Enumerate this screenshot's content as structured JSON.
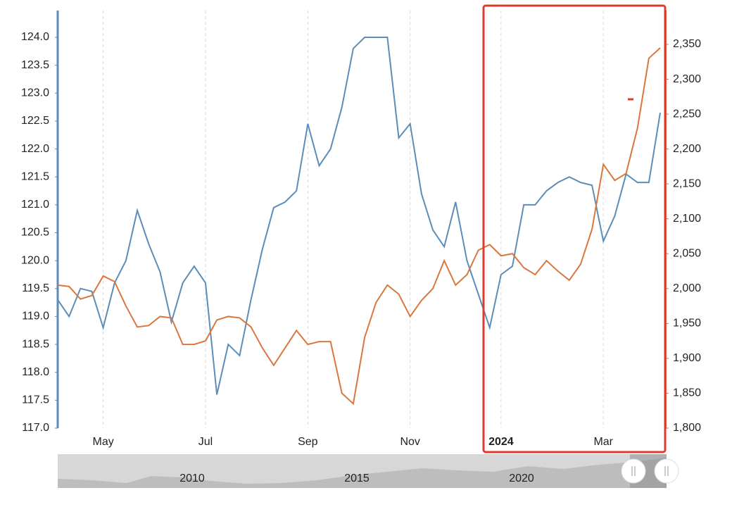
{
  "chart_data": {
    "type": "line",
    "categories": [
      null,
      null,
      null,
      null,
      "May",
      null,
      null,
      null,
      null,
      null,
      null,
      null,
      null,
      "Jul",
      null,
      null,
      null,
      null,
      null,
      null,
      null,
      null,
      "Sep",
      null,
      null,
      null,
      null,
      null,
      null,
      null,
      null,
      "Nov",
      null,
      null,
      null,
      null,
      null,
      null,
      null,
      "2024",
      null,
      null,
      null,
      null,
      null,
      null,
      null,
      null,
      "Mar",
      null,
      null,
      null,
      null,
      null
    ],
    "series": [
      {
        "color": "#5b8db8",
        "values": [
          119.3,
          119.0,
          119.5,
          119.45,
          118.8,
          119.6,
          120.0,
          120.9,
          120.3,
          119.8,
          118.9,
          119.6,
          119.9,
          119.6,
          117.6,
          118.5,
          118.3,
          119.3,
          120.2,
          120.95,
          121.05,
          121.25,
          122.45,
          121.7,
          122.0,
          122.75,
          123.8,
          124.0,
          124.0,
          124.0,
          122.2,
          122.45,
          121.2,
          120.55,
          120.25,
          121.05,
          120.0,
          119.4,
          118.8,
          119.75,
          119.9,
          121.0,
          121.0,
          121.25,
          121.4,
          121.5,
          121.4,
          121.35,
          120.35,
          120.8,
          121.55,
          121.4,
          121.4,
          122.65
        ]
      },
      {
        "color": "#d9773e",
        "axis": "y2",
        "values": [
          2005,
          2003,
          1985,
          1990,
          2018,
          2010,
          1975,
          1945,
          1947,
          1960,
          1958,
          1920,
          1920,
          1925,
          1955,
          1960,
          1958,
          1945,
          1915,
          1890,
          1915,
          1940,
          1920,
          1924,
          1924,
          1850,
          1835,
          1930,
          1980,
          2005,
          1992,
          1960,
          1983,
          2000,
          2040,
          2005,
          2020,
          2055,
          2063,
          2047,
          2050,
          2030,
          2020,
          2040,
          2025,
          2012,
          2035,
          2085,
          2178,
          2155,
          2165,
          2230,
          2330,
          2345
        ]
      }
    ],
    "ylim": [
      117.0,
      124.0
    ],
    "yticks": [
      {
        "value": 117.0,
        "label": "117.0"
      },
      {
        "value": 117.5,
        "label": "117.5"
      },
      {
        "value": 118.0,
        "label": "118.0"
      },
      {
        "value": 118.5,
        "label": "118.5"
      },
      {
        "value": 119.0,
        "label": "119.0"
      },
      {
        "value": 119.5,
        "label": "119.5"
      },
      {
        "value": 120.0,
        "label": "120.0"
      },
      {
        "value": 120.5,
        "label": "120.5"
      },
      {
        "value": 121.0,
        "label": "121.0"
      },
      {
        "value": 121.5,
        "label": "121.5"
      },
      {
        "value": 122.0,
        "label": "122.0"
      },
      {
        "value": 122.5,
        "label": "122.5"
      },
      {
        "value": 123.0,
        "label": "123.0"
      },
      {
        "value": 123.5,
        "label": "123.5"
      },
      {
        "value": 124.0,
        "label": "124.0"
      }
    ],
    "y2lim": [
      1800,
      2350
    ],
    "y2ticks": [
      {
        "value": 1800,
        "label": "1,800"
      },
      {
        "value": 1850,
        "label": "1,850"
      },
      {
        "value": 1900,
        "label": "1,900"
      },
      {
        "value": 1950,
        "label": "1,950"
      },
      {
        "value": 2000,
        "label": "2,000"
      },
      {
        "value": 2050,
        "label": "2,050"
      },
      {
        "value": 2100,
        "label": "2,100"
      },
      {
        "value": 2150,
        "label": "2,150"
      },
      {
        "value": 2200,
        "label": "2,200"
      },
      {
        "value": 2250,
        "label": "2,250"
      },
      {
        "value": 2300,
        "label": "2,300"
      },
      {
        "value": 2350,
        "label": "2,350"
      }
    ],
    "grid": true,
    "navigator_labels": [
      "2010",
      "2015",
      "2020"
    ]
  }
}
